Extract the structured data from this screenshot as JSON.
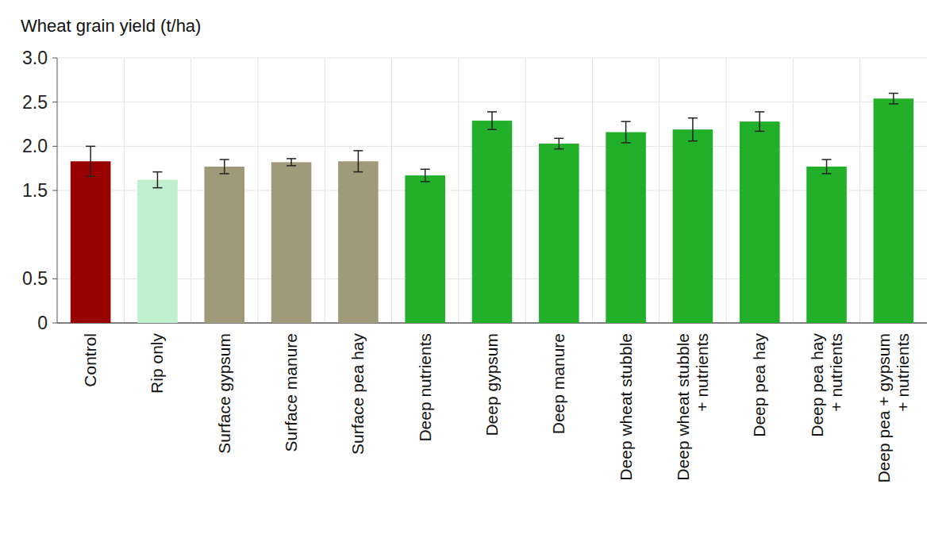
{
  "chart_data": {
    "type": "bar",
    "y_label": "Wheat grain yield (t/ha)",
    "categories": [
      "Control",
      "Rip only",
      "Surface gypsum",
      "Surface manure",
      "Surface pea hay",
      "Deep nutrients",
      "Deep gypsum",
      "Deep manure",
      "Deep wheat stubble",
      "Deep wheat stubble\n+ nutrients",
      "Deep pea hay",
      "Deep pea hay\n+ nutrients",
      "Deep pea + gypsum\n+ nutrients"
    ],
    "values": [
      1.83,
      1.62,
      1.77,
      1.82,
      1.83,
      1.67,
      2.29,
      2.03,
      2.16,
      2.19,
      2.28,
      1.77,
      2.54
    ],
    "errors": [
      0.17,
      0.09,
      0.08,
      0.04,
      0.12,
      0.07,
      0.1,
      0.06,
      0.12,
      0.13,
      0.11,
      0.08,
      0.06
    ],
    "colors": [
      "#990000",
      "#c0efcd",
      "#a09a7a",
      "#a09a7a",
      "#a09a7a",
      "#22b02a",
      "#22b02a",
      "#22b02a",
      "#22b02a",
      "#22b02a",
      "#22b02a",
      "#22b02a",
      "#22b02a"
    ],
    "ylim": [
      0,
      3
    ],
    "yticks": [
      0,
      0.5,
      1.5,
      {
        "value": 2,
        "label": "2.0"
      },
      2.5,
      {
        "value": 3,
        "label": "3.0"
      }
    ],
    "grid": true
  }
}
